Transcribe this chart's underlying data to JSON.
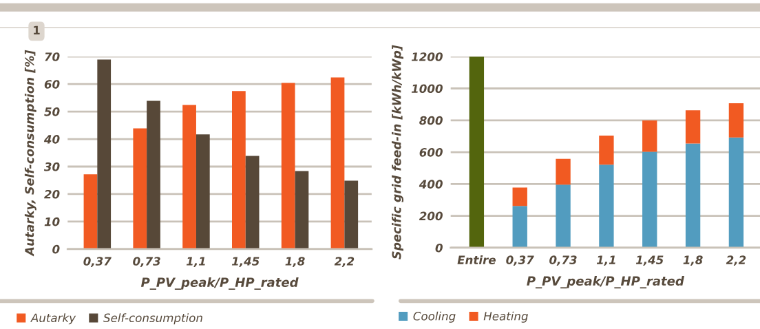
{
  "chart_data": [
    {
      "type": "bar",
      "categories": [
        "0,37",
        "0,73",
        "1,1",
        "1,45",
        "1,8",
        "2,2"
      ],
      "xlabel": "P_PV_peak/P_HP_rated",
      "ylabel": "Autarky, Self-consumption [%]",
      "ylim": [
        0,
        70
      ],
      "yticks": [
        0,
        10,
        20,
        30,
        40,
        50,
        60,
        70
      ],
      "grid": "y",
      "legend": "bottom left",
      "annotations": [
        "1"
      ],
      "series": [
        {
          "name": "Autarky",
          "color": "#f15a22",
          "values": [
            27.2,
            43.9,
            52.4,
            57.5,
            60.4,
            62.4
          ]
        },
        {
          "name": "Self-consumption",
          "color": "#574838",
          "values": [
            68.9,
            53.9,
            41.7,
            33.9,
            28.4,
            24.9
          ]
        }
      ]
    },
    {
      "type": "bar",
      "stacked": true,
      "categories": [
        "Entire",
        "0,37",
        "0,73",
        "1,1",
        "1,45",
        "1,8",
        "2,2"
      ],
      "xlabel": "P_PV_peak/P_HP_rated",
      "ylabel": "Specific grid feed-in [kWh/kWp]",
      "ylim": [
        0,
        1200
      ],
      "yticks": [
        0,
        200,
        400,
        600,
        800,
        1000,
        1200
      ],
      "grid": "y",
      "legend": "bottom left",
      "series": [
        {
          "color": "#53650d",
          "values": [
            1200,
            null,
            null,
            null,
            null,
            null,
            null
          ]
        },
        {
          "name": "Cooling",
          "color": "#529cbf",
          "values": [
            null,
            262,
            396,
            521,
            603,
            654,
            692
          ]
        },
        {
          "name": "Heating",
          "color": "#f15a22",
          "values": [
            null,
            116,
            162,
            183,
            196,
            209,
            215
          ]
        }
      ]
    }
  ]
}
